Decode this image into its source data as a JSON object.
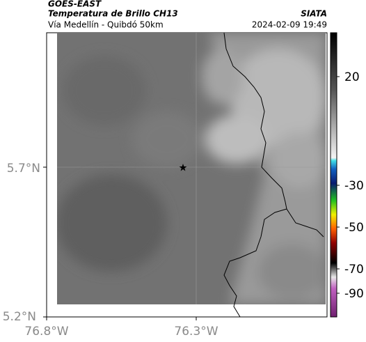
{
  "header": {
    "source": "GOES-EAST",
    "product": "Temperatura de Brillo CH13",
    "organization": "SIATA",
    "route": "Vía Medellín - Quibdó 50km",
    "datetime": "2024-02-09 19:49"
  },
  "map": {
    "lat_labels": [
      "5.7°N",
      "5.2°N"
    ],
    "lon_labels": [
      "76.8°W",
      "76.3°W"
    ]
  },
  "colorbar": {
    "ticks": [
      20,
      -30,
      -50,
      -70,
      -90
    ]
  }
}
